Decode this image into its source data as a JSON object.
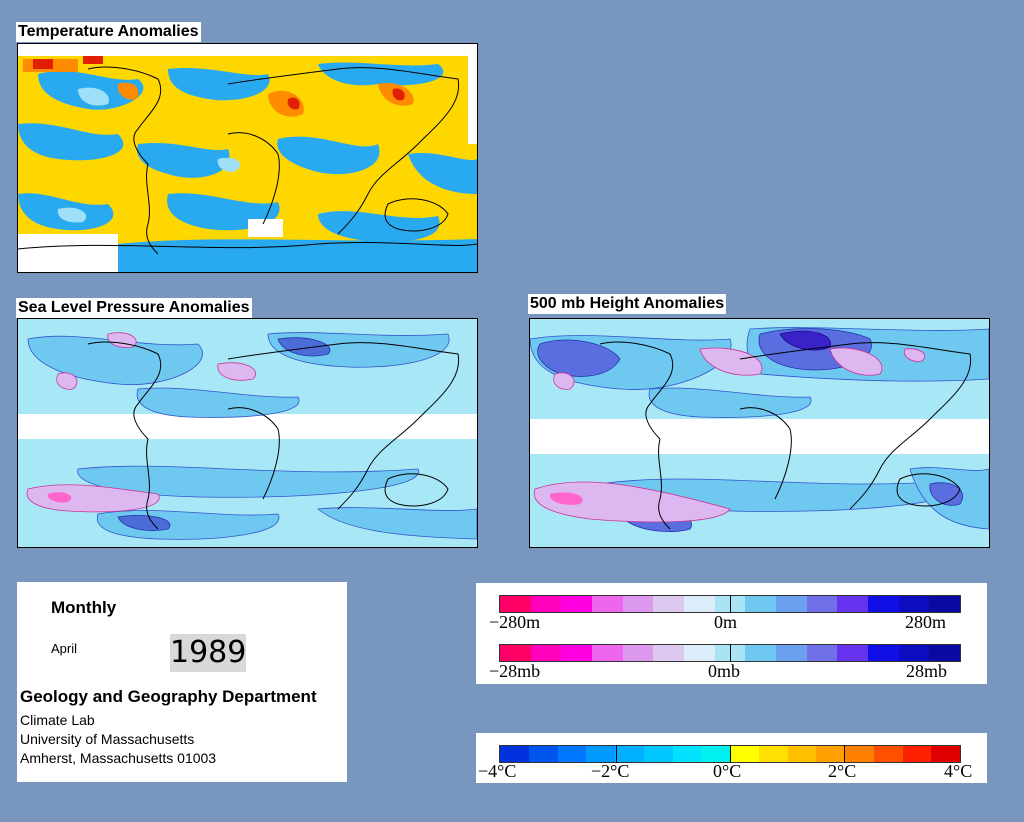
{
  "panels": {
    "temperature": {
      "title": "Temperature Anomalies"
    },
    "slp": {
      "title": "Sea Level Pressure Anomalies"
    },
    "height500": {
      "title": "500 mb Height Anomalies"
    }
  },
  "info": {
    "period": "Monthly",
    "month": "April",
    "year": "1989",
    "department": "Geology and Geography Department",
    "lab": "Climate Lab",
    "university": "University of Massachusetts",
    "address": "Amherst, Massachusetts 01003"
  },
  "height_legend": {
    "min_label": "−280m",
    "mid_label": "0m",
    "max_label": "280m",
    "colors": [
      "#ff0066",
      "#ff00bb",
      "#ff00e0",
      "#ee66ee",
      "#dd99ee",
      "#ddc8f0",
      "#dcecf8",
      "#a8e4f4",
      "#6ec8f0",
      "#6aa0ee",
      "#7070e8",
      "#6633ee",
      "#1010e6",
      "#0c0cc0",
      "#0a0aa0"
    ]
  },
  "pressure_legend": {
    "min_label": "−28mb",
    "mid_label": "0mb",
    "max_label": "28mb",
    "colors": [
      "#ff0066",
      "#ff00bb",
      "#ff00e0",
      "#ee66ee",
      "#dd99ee",
      "#ddc8f0",
      "#dcecf8",
      "#a8e4f4",
      "#6ec8f0",
      "#6aa0ee",
      "#7070e8",
      "#6633ee",
      "#1010e6",
      "#0c0cc0",
      "#0a0aa0"
    ]
  },
  "temp_legend": {
    "labels": [
      "−4°C",
      "−2°C",
      "0°C",
      "2°C",
      "4°C"
    ],
    "colors": [
      "#0033dd",
      "#0055ee",
      "#0077ff",
      "#0099ff",
      "#00b0ff",
      "#00c8ff",
      "#00e0ff",
      "#00f0f0",
      "#ffff00",
      "#ffe000",
      "#ffc000",
      "#ffa000",
      "#ff8000",
      "#ff5000",
      "#ff2000",
      "#e00000"
    ]
  }
}
